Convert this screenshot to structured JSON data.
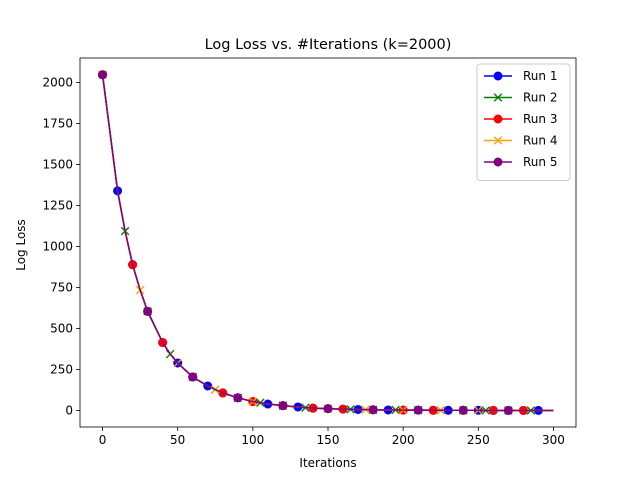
{
  "chart_data": {
    "type": "line",
    "title": "Log Loss vs. #Iterations (k=2000)",
    "xlabel": "Iterations",
    "ylabel": "Log Loss",
    "xlim": [
      -15,
      315
    ],
    "ylim": [
      -100,
      2150
    ],
    "xticks": [
      0,
      50,
      100,
      150,
      200,
      250,
      300
    ],
    "yticks": [
      0,
      250,
      500,
      750,
      1000,
      1250,
      1500,
      1750,
      2000
    ],
    "grid": false,
    "legend_position": "top-right",
    "series": [
      {
        "name": "Run 1",
        "color": "#0000ff",
        "marker": "circle",
        "marker_start": 0,
        "marker_every": 10
      },
      {
        "name": "Run 2",
        "color": "#008000",
        "marker": "x",
        "marker_start": 0,
        "marker_every": 15
      },
      {
        "name": "Run 3",
        "color": "#ff0000",
        "marker": "circle",
        "marker_start": 0,
        "marker_every": 20
      },
      {
        "name": "Run 4",
        "color": "#ffa500",
        "marker": "x",
        "marker_start": 0,
        "marker_every": 25
      },
      {
        "name": "Run 5",
        "color": "#800080",
        "marker": "circle",
        "marker_start": 0,
        "marker_every": 30
      }
    ],
    "curve": {
      "x": [
        0,
        10,
        15,
        20,
        25,
        30,
        40,
        45,
        50,
        60,
        70,
        75,
        80,
        90,
        100,
        105,
        110,
        120,
        130,
        135,
        140,
        150,
        160,
        165,
        170,
        175,
        180,
        190,
        195,
        200,
        210,
        220,
        225,
        230,
        240,
        250,
        255,
        260,
        270,
        280,
        285,
        290,
        300
      ],
      "y": [
        2048,
        1340,
        1095,
        890,
        735,
        605,
        415,
        345,
        290,
        205,
        150,
        128,
        108,
        78,
        55,
        48,
        40,
        30,
        22,
        18,
        15,
        12,
        9,
        8,
        7,
        6,
        5,
        4,
        4,
        3,
        3,
        2,
        2,
        2,
        2,
        2,
        1,
        1,
        1,
        1,
        1,
        1,
        1
      ]
    }
  }
}
